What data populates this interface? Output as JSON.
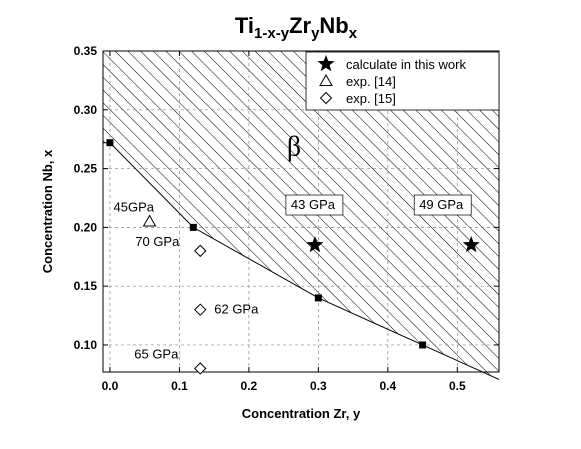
{
  "chart_data": {
    "type": "scatter",
    "title": {
      "base": "Ti",
      "sub1": "1-x-y",
      "mid1": "Zr",
      "sub2": "y",
      "mid2": "Nb",
      "sub3": "x"
    },
    "xlabel": "Concentration Zr, y",
    "ylabel": "Concentration Nb, x",
    "xlim": [
      -0.01,
      0.56
    ],
    "ylim": [
      0.077,
      0.35
    ],
    "xticks": [
      "0.0",
      "0.1",
      "0.2",
      "0.3",
      "0.4",
      "0.5"
    ],
    "xtick_values": [
      0.0,
      0.1,
      0.2,
      0.3,
      0.4,
      0.5
    ],
    "yticks": [
      "0.10",
      "0.15",
      "0.20",
      "0.25",
      "0.30",
      "0.35"
    ],
    "ytick_values": [
      0.1,
      0.15,
      0.2,
      0.25,
      0.3,
      0.35
    ],
    "grid": "dashed",
    "legend_position": "top-right",
    "boundary": {
      "x": [
        0.0,
        0.12,
        0.3,
        0.45
      ],
      "y": [
        0.272,
        0.2,
        0.14,
        0.1
      ]
    },
    "series": [
      {
        "name": "calculate in this work",
        "marker": "star",
        "x": [
          0.295,
          0.52
        ],
        "y": [
          0.185,
          0.185
        ],
        "labels": [
          "43 GPa",
          "49 GPa"
        ]
      },
      {
        "name": "exp. [14]",
        "marker": "triangle",
        "x": [
          0.057
        ],
        "y": [
          0.205
        ],
        "labels": [
          "45GPa"
        ]
      },
      {
        "name": "exp. [15]",
        "marker": "diamond",
        "x": [
          0.13,
          0.13,
          0.13
        ],
        "y": [
          0.18,
          0.13,
          0.08
        ],
        "labels": [
          "70 GPa",
          "62 GPa",
          "65 GPa"
        ]
      }
    ],
    "region_label": "β"
  }
}
